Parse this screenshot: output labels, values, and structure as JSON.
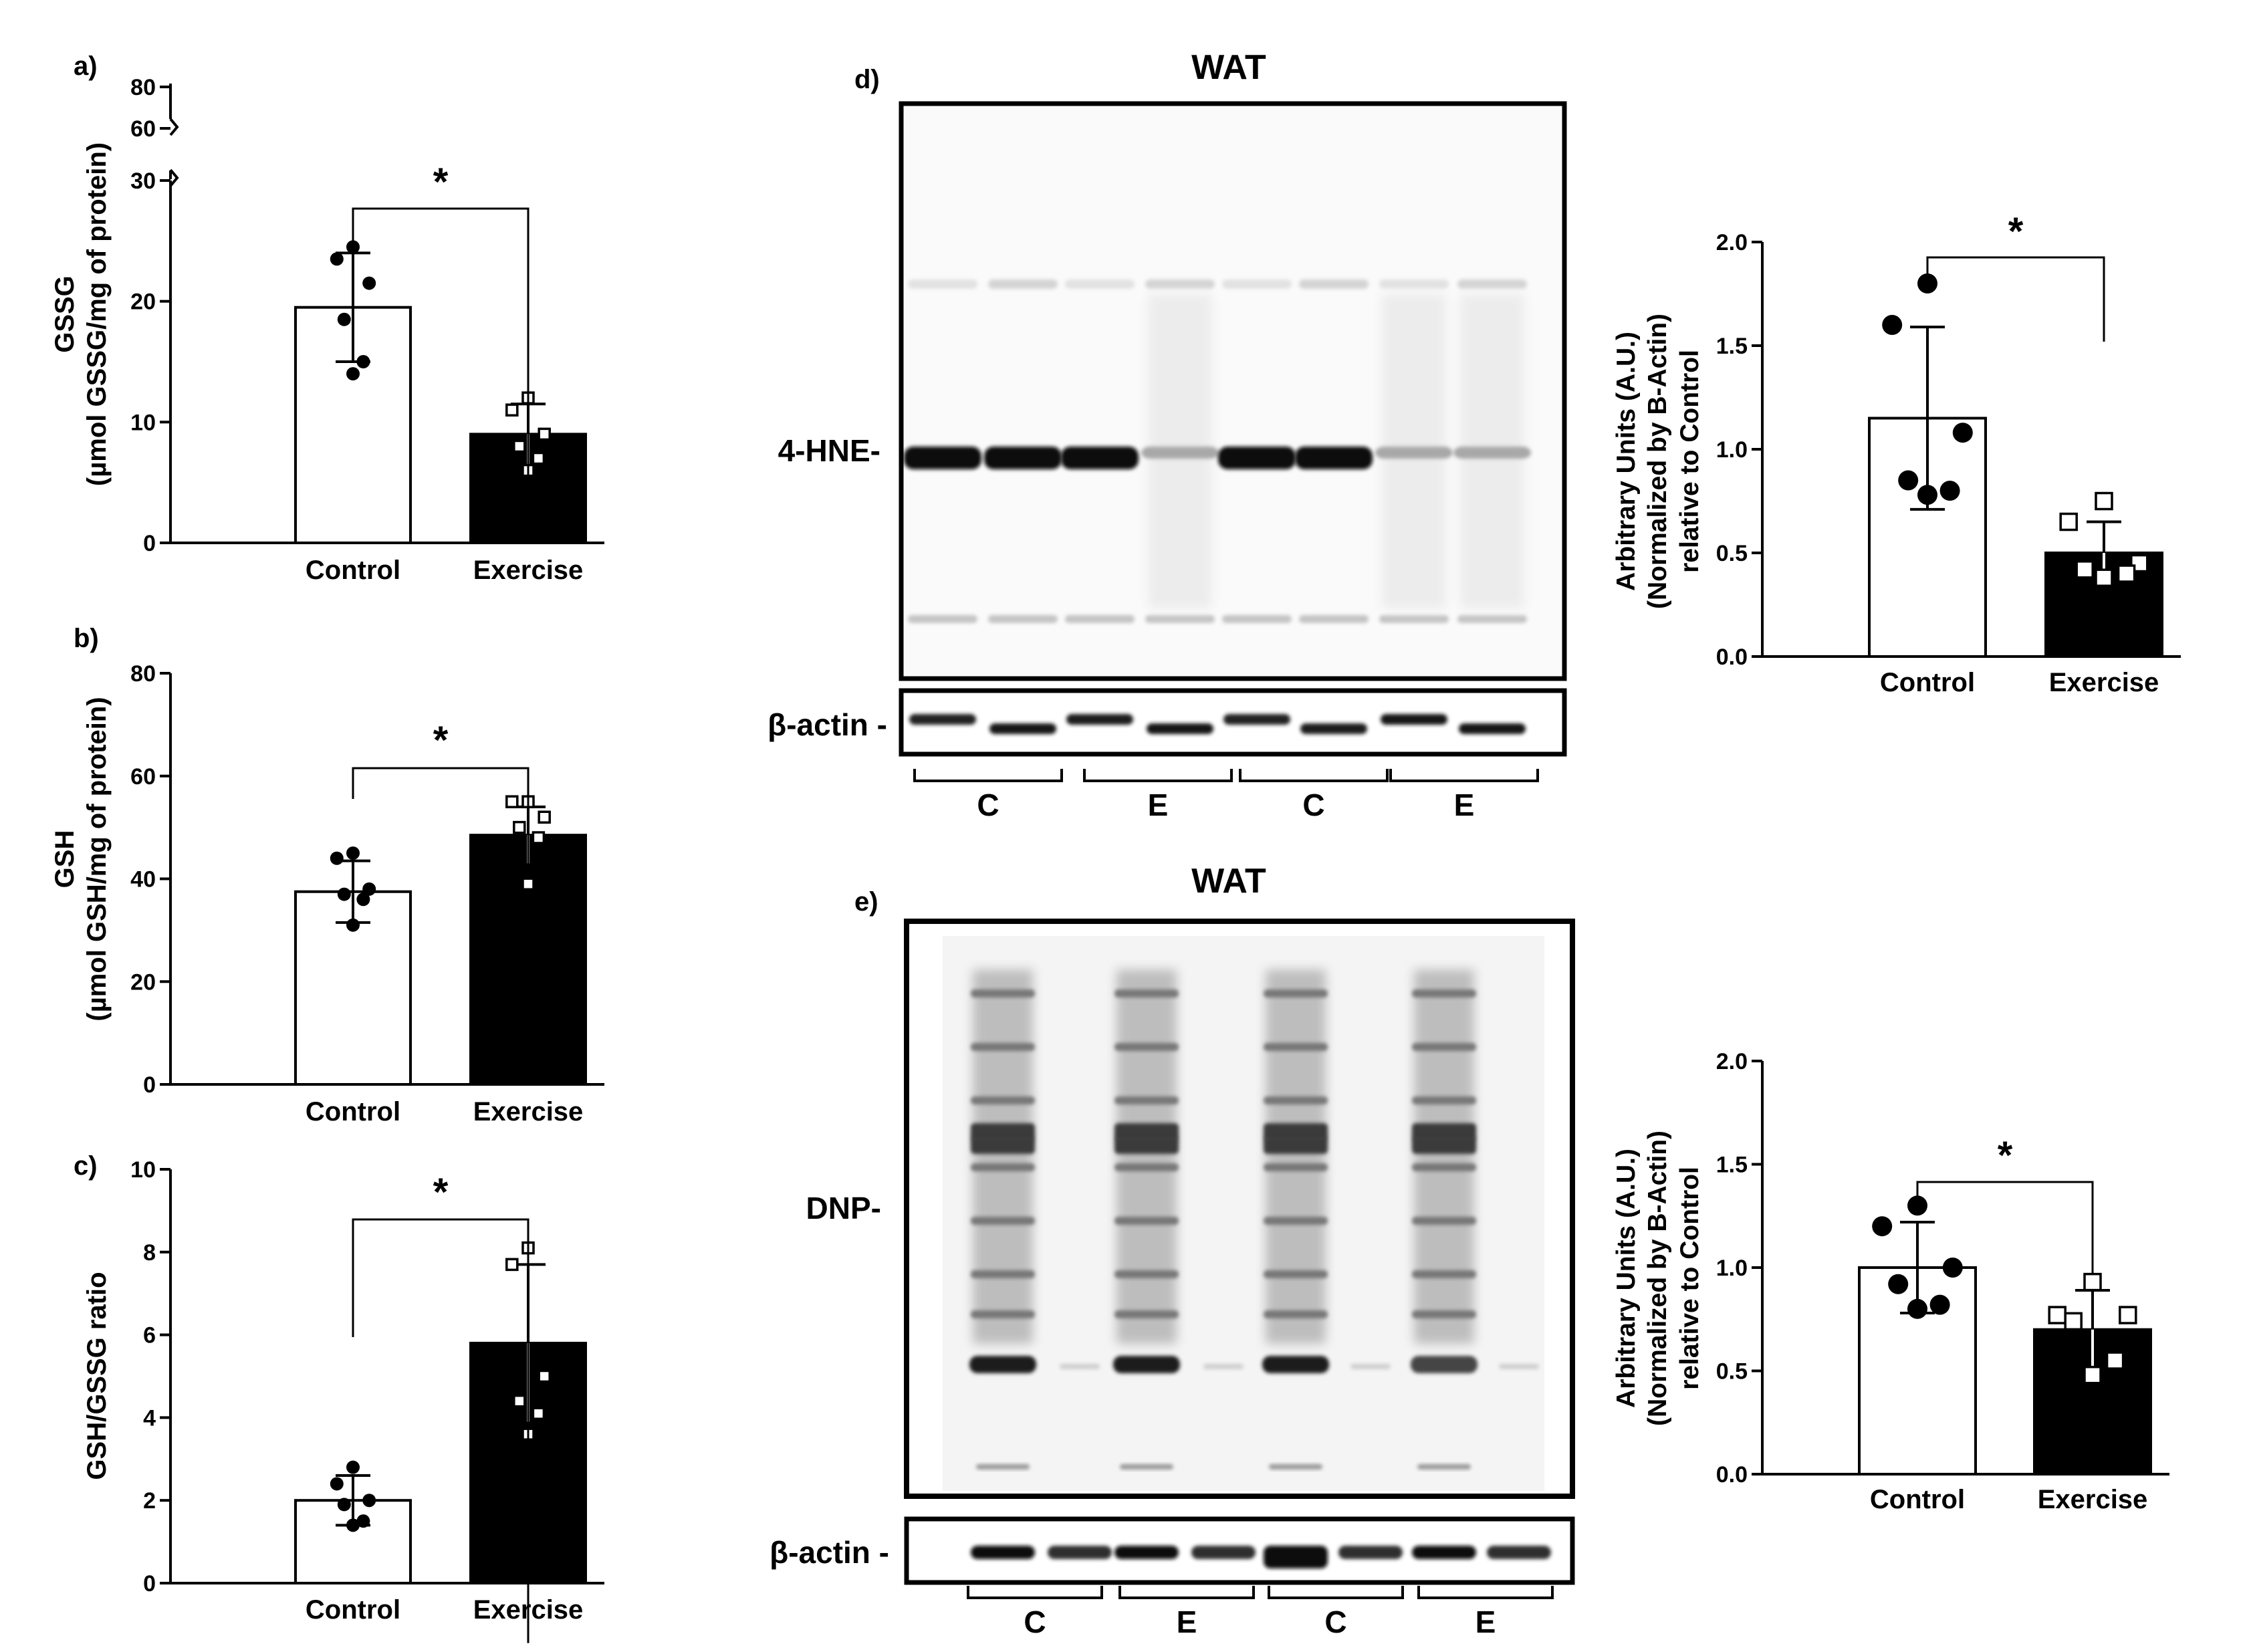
{
  "chart_data": [
    {
      "panel": "a)",
      "type": "bar",
      "ylabel_lines": [
        "GSSG",
        "(µmol GSSG/mg of protein)"
      ],
      "categories": [
        "Control",
        "Exercise"
      ],
      "values": [
        19.5,
        9.0
      ],
      "error_sd": [
        4.5,
        2.5
      ],
      "points": [
        [
          24.5,
          23.5,
          21.5,
          18.5,
          15.0,
          14.0
        ],
        [
          12.0,
          11.0,
          9.0,
          8.0,
          7.0,
          6.0
        ]
      ],
      "ylim": [
        0,
        30
      ],
      "yticks": [
        "0",
        "10",
        "20",
        "30"
      ],
      "axis_break_ticks": [
        "60",
        "80"
      ],
      "significance": "*"
    },
    {
      "panel": "b)",
      "type": "bar",
      "ylabel_lines": [
        "GSH",
        "(µmol GSH/mg of protein)"
      ],
      "categories": [
        "Control",
        "Exercise"
      ],
      "values": [
        37.5,
        48.5
      ],
      "error_sd": [
        6.0,
        5.5
      ],
      "points": [
        [
          45.0,
          44.0,
          38.0,
          37.0,
          36.0,
          31.0
        ],
        [
          55.0,
          55.0,
          52.0,
          50.0,
          48.0,
          39.0
        ]
      ],
      "ylim": [
        0,
        80
      ],
      "yticks": [
        "0",
        "20",
        "40",
        "60",
        "80"
      ],
      "significance": "*"
    },
    {
      "panel": "c)",
      "type": "bar",
      "ylabel_lines": [
        "GSH/GSSG ratio"
      ],
      "categories": [
        "Control",
        "Exercise"
      ],
      "values": [
        2.0,
        5.8
      ],
      "error_sd": [
        0.6,
        1.9
      ],
      "points": [
        [
          2.8,
          2.4,
          2.0,
          1.9,
          1.5,
          1.4
        ],
        [
          8.1,
          7.7,
          5.0,
          4.4,
          4.1,
          3.6
        ]
      ],
      "ylim": [
        0,
        10
      ],
      "yticks": [
        "0",
        "2",
        "4",
        "6",
        "8",
        "10"
      ],
      "significance": "*"
    },
    {
      "panel": "d)",
      "type": "bar",
      "ylabel_lines": [
        "Arbitrary Units (A.U.)",
        "(Normalized by B-Actin)",
        "relative to Control"
      ],
      "categories": [
        "Control",
        "Exercise"
      ],
      "values": [
        1.15,
        0.5
      ],
      "error_sd": [
        0.44,
        0.15
      ],
      "points": [
        [
          1.8,
          1.6,
          1.08,
          0.85,
          0.8,
          0.78
        ],
        [
          0.75,
          0.65,
          0.45,
          0.42,
          0.4,
          0.38
        ]
      ],
      "ylim": [
        0,
        2.0
      ],
      "yticks": [
        "0.0",
        "0.5",
        "1.0",
        "1.5",
        "2.0"
      ],
      "significance": "*"
    },
    {
      "panel": "e)",
      "type": "bar",
      "ylabel_lines": [
        "Arbitrary Units (A.U.)",
        "(Normalized by B-Actin)",
        "relative to Control"
      ],
      "categories": [
        "Control",
        "Exercise"
      ],
      "values": [
        1.0,
        0.7
      ],
      "error_sd": [
        0.22,
        0.19
      ],
      "points": [
        [
          1.3,
          1.2,
          1.0,
          0.92,
          0.82,
          0.8
        ],
        [
          0.93,
          0.77,
          0.77,
          0.74,
          0.55,
          0.48
        ]
      ],
      "ylim": [
        0,
        2.0
      ],
      "yticks": [
        "0.0",
        "0.5",
        "1.0",
        "1.5",
        "2.0"
      ],
      "significance": "*"
    }
  ],
  "blots": {
    "d": {
      "panel_label": "d)",
      "title": "WAT",
      "band_label": "4-HNE-",
      "actin_label": "β-actin -",
      "lane_groups": [
        "C",
        "E",
        "C",
        "E"
      ]
    },
    "e": {
      "panel_label": "e)",
      "title": "WAT",
      "band_label": "DNP-",
      "actin_label": "β-actin -",
      "lane_groups": [
        "C",
        "E",
        "C",
        "E"
      ]
    }
  }
}
